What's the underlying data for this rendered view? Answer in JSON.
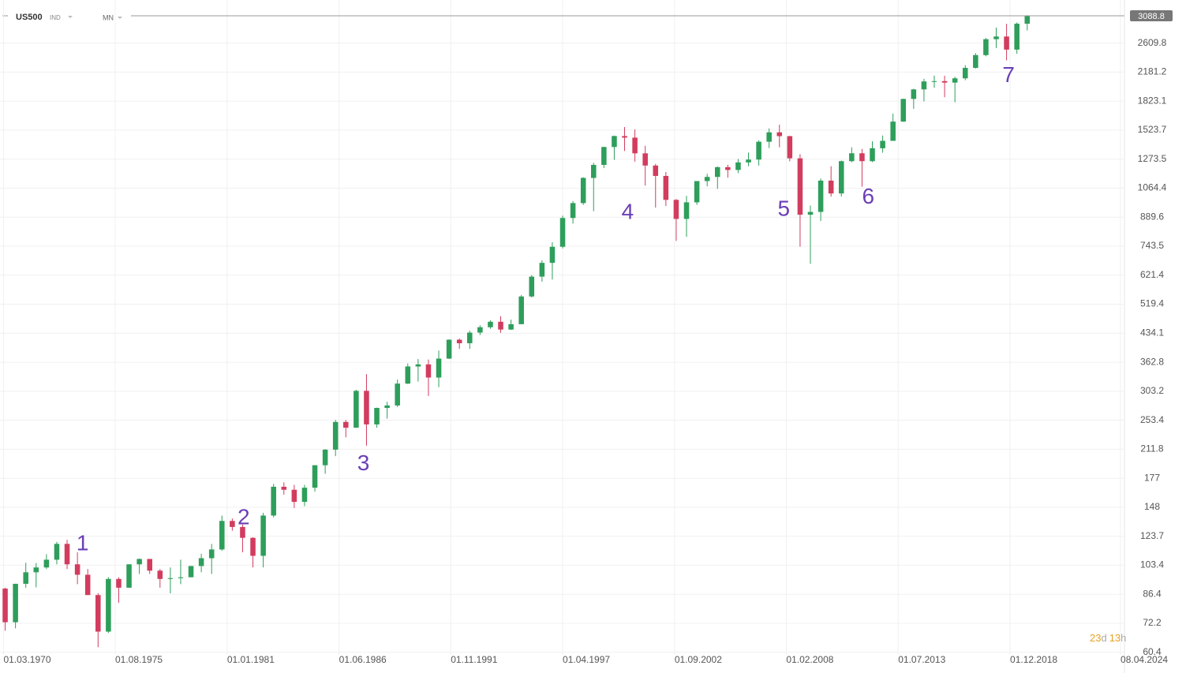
{
  "header": {
    "symbol": "US500",
    "market": "IND",
    "timeframe": "MN"
  },
  "countdown": {
    "days": 23,
    "days_unit": "d",
    "hours": 13,
    "hours_unit": "h"
  },
  "chart_data": {
    "type": "candlestick",
    "log_scale": true,
    "grid": true,
    "up_color": "#2e9e5b",
    "down_color": "#d23c5e",
    "last_price": 3088.8,
    "x": [
      1970.25,
      1970.75,
      1971.25,
      1971.75,
      1972.25,
      1972.75,
      1973.25,
      1973.75,
      1974.25,
      1974.75,
      1975.25,
      1975.75,
      1976.25,
      1976.75,
      1977.25,
      1977.75,
      1978.25,
      1978.75,
      1979.25,
      1979.75,
      1980.25,
      1980.75,
      1981.25,
      1981.75,
      1982.25,
      1982.75,
      1983.25,
      1983.75,
      1984.25,
      1984.75,
      1985.25,
      1985.75,
      1986.25,
      1986.75,
      1987.25,
      1987.75,
      1988.25,
      1988.75,
      1989.25,
      1989.75,
      1990.25,
      1990.75,
      1991.25,
      1991.75,
      1992.25,
      1992.75,
      1993.25,
      1993.75,
      1994.25,
      1994.75,
      1995.25,
      1995.75,
      1996.25,
      1996.75,
      1997.25,
      1997.75,
      1998.25,
      1998.75,
      1999.25,
      1999.75,
      2000.25,
      2000.75,
      2001.25,
      2001.75,
      2002.25,
      2002.75,
      2003.25,
      2003.75,
      2004.25,
      2004.75,
      2005.25,
      2005.75,
      2006.25,
      2006.75,
      2007.25,
      2007.75,
      2008.25,
      2008.75,
      2009.25,
      2009.75,
      2010.25,
      2010.75,
      2011.25,
      2011.75,
      2012.25,
      2012.75,
      2013.25,
      2013.75,
      2014.25,
      2014.75,
      2015.25,
      2015.75,
      2016.25,
      2016.75,
      2017.25,
      2017.75,
      2018.25,
      2018.75,
      2019.25,
      2019.75
    ],
    "open": [
      89.5,
      72.7,
      92.2,
      99,
      102,
      107,
      118,
      104,
      97.5,
      86,
      68.6,
      95,
      90,
      104,
      107.5,
      100,
      95,
      95.5,
      96,
      102.9,
      108,
      114,
      136,
      131,
      122.5,
      109.6,
      140.6,
      168,
      164.9,
      153,
      167,
      191.9,
      211.3,
      250.8,
      242,
      304,
      247,
      273.5,
      277.7,
      317.9,
      353.4,
      358,
      330,
      371,
      417,
      408,
      435.7,
      450.5,
      466,
      444,
      459,
      544.8,
      615.9,
      670.6,
      740.7,
      885,
      970.4,
      1133.8,
      1229,
      1372.7,
      1469,
      1454.6,
      1320,
      1224,
      1148,
      990,
      880,
      975,
      1111.9,
      1140.8,
      1211.9,
      1191,
      1248,
      1270,
      1418,
      1503,
      1468,
      1280,
      903,
      919,
      1115,
      1030,
      1257.6,
      1320.6,
      1257.6,
      1362,
      1426,
      1606,
      1848,
      1960,
      2058.9,
      2063,
      2043.9,
      2098.9,
      2238.8,
      2423,
      2673.6,
      2718,
      2506.8,
      2941.8
    ],
    "high": [
      90,
      92.2,
      105,
      104.8,
      110.7,
      119.5,
      121,
      112,
      101,
      87,
      96,
      96,
      104,
      107.8,
      107.5,
      101,
      102,
      107,
      103,
      111,
      118,
      140.5,
      138.1,
      133,
      123,
      143,
      171,
      172.6,
      170,
      170,
      192,
      212,
      254,
      254,
      306,
      337,
      274,
      284,
      326,
      360,
      370,
      369,
      390,
      418,
      420,
      441,
      456,
      470,
      482,
      472,
      550,
      622,
      681,
      762,
      898,
      983,
      1139,
      1245,
      1375,
      1473,
      1552.9,
      1530,
      1383,
      1236,
      1176,
      995,
      1015,
      1112,
      1163,
      1217,
      1230,
      1275,
      1326,
      1431,
      1540,
      1576,
      1471,
      1313,
      956,
      1130,
      1219,
      1262,
      1370,
      1356,
      1422,
      1474,
      1687,
      1849,
      1968,
      2093,
      2134,
      2133,
      2120,
      2277,
      2453,
      2694,
      2872,
      2940,
      2964,
      3100
    ],
    "low": [
      69,
      70,
      90,
      90.2,
      101,
      104,
      101,
      92,
      86,
      62.3,
      68,
      82,
      90,
      98,
      98,
      90,
      86.9,
      92,
      96,
      99,
      98,
      113,
      128,
      112,
      102,
      102,
      139,
      160,
      147.3,
      149,
      163,
      182,
      203,
      228,
      242,
      216.5,
      242,
      256,
      275,
      317,
      322,
      294.5,
      311,
      370,
      394,
      394,
      429,
      446,
      435,
      443,
      459,
      541,
      597,
      605,
      733,
      855,
      960,
      923,
      1205,
      1268,
      1339,
      1254,
      1081,
      944,
      953,
      768,
      788,
      960,
      1076,
      1060,
      1136,
      1168,
      1219,
      1224,
      1364,
      1370,
      1256,
      741,
      666.8,
      869,
      1010,
      1011,
      1249,
      1074,
      1250,
      1325,
      1426,
      1604,
      1737,
      1820,
      1980,
      1867,
      1810,
      2074,
      2230,
      2405,
      2532,
      2346,
      2443,
      2822
    ],
    "close": [
      72.7,
      92.2,
      99,
      102,
      107,
      118,
      104,
      97.5,
      86,
      68.6,
      95,
      90,
      104,
      107.5,
      100,
      95,
      95.5,
      96,
      102.9,
      108,
      114,
      136,
      131,
      122.5,
      109.6,
      140.6,
      168,
      164.9,
      153,
      167,
      191.9,
      211.3,
      250.8,
      242,
      304,
      247,
      273.5,
      277.7,
      317.9,
      353.4,
      358,
      330,
      371,
      417,
      408,
      435.7,
      450.5,
      466,
      444,
      459,
      544.8,
      615.9,
      670.6,
      740.7,
      885,
      970.4,
      1133.8,
      1229,
      1372.7,
      1469,
      1454.6,
      1320,
      1224,
      1148,
      990,
      880,
      975,
      1111.9,
      1140.8,
      1211.9,
      1191,
      1248,
      1270,
      1418,
      1503,
      1468,
      1280,
      903,
      919,
      1115,
      1030,
      1257.6,
      1320.6,
      1257.6,
      1362,
      1426,
      1606,
      1848,
      1960,
      2058.9,
      2063,
      2043.9,
      2098.9,
      2238.8,
      2423,
      2673.6,
      2718,
      2506.8,
      2941.8,
      3088.8
    ],
    "xlim": [
      1970,
      2024.46
    ],
    "xticks": [
      {
        "value": 1970.17,
        "label": "01.03.1970"
      },
      {
        "value": 1975.58,
        "label": "01.08.1975"
      },
      {
        "value": 1981.0,
        "label": "01.01.1981"
      },
      {
        "value": 1986.42,
        "label": "01.06.1986"
      },
      {
        "value": 1991.83,
        "label": "01.11.1991"
      },
      {
        "value": 1997.25,
        "label": "01.04.1997"
      },
      {
        "value": 2002.67,
        "label": "01.09.2002"
      },
      {
        "value": 2008.08,
        "label": "01.02.2008"
      },
      {
        "value": 2013.5,
        "label": "01.07.2013"
      },
      {
        "value": 2018.92,
        "label": "01.12.2018"
      },
      {
        "value": 2024.27,
        "label": "08.04.2024"
      }
    ],
    "ylim": [
      60,
      3120
    ],
    "yticks": [
      60.4,
      72.2,
      86.4,
      103.4,
      123.7,
      148.0,
      177.0,
      211.8,
      253.4,
      303.2,
      362.8,
      434.1,
      519.4,
      621.4,
      743.5,
      889.6,
      1064.4,
      1273.5,
      1523.7,
      1823.1,
      2181.2,
      2609.8
    ],
    "annotations": [
      {
        "text": "1",
        "x": 1974.0,
        "y": 117.6,
        "color": "#6a3fb5"
      },
      {
        "text": "2",
        "x": 1981.8,
        "y": 138,
        "color": "#6a3fb5"
      },
      {
        "text": "3",
        "x": 1987.6,
        "y": 193,
        "color": "#6a3fb5"
      },
      {
        "text": "4",
        "x": 2000.4,
        "y": 912,
        "color": "#6a3fb5"
      },
      {
        "text": "5",
        "x": 2007.96,
        "y": 930,
        "color": "#6a3fb5"
      },
      {
        "text": "6",
        "x": 2012.05,
        "y": 1002,
        "color": "#6a3fb5"
      },
      {
        "text": "7",
        "x": 2018.85,
        "y": 2124,
        "color": "#6a3fb5"
      }
    ]
  }
}
